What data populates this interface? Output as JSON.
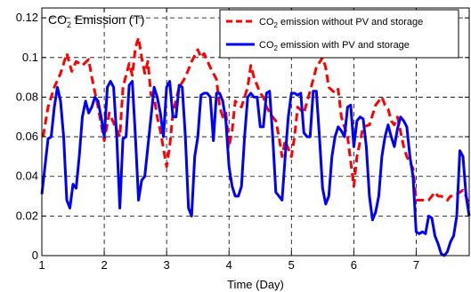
{
  "colors": {
    "series_without": "#ff0000",
    "series_with": "#0000ff",
    "axis": "#000000",
    "background": "#ffffff"
  },
  "chart_data": {
    "type": "line",
    "title_parts": [
      "CO",
      "2",
      " Emission (T)"
    ],
    "xlabel": "Time (Day)",
    "ylabel": "",
    "xlim": [
      1,
      7.85
    ],
    "ylim": [
      0,
      0.125
    ],
    "xticks": [
      1,
      2,
      3,
      4,
      5,
      6,
      7
    ],
    "xtick_labels": [
      "1",
      "2",
      "3",
      "4",
      "5",
      "6",
      "7"
    ],
    "yticks": [
      0,
      0.02,
      0.04,
      0.06,
      0.08,
      0.1,
      0.12
    ],
    "ytick_labels": [
      "0",
      "0.02",
      "0.04",
      "0.06",
      "0.08",
      "0.1",
      "0.12"
    ],
    "grid": true,
    "legend_position": "top-right",
    "series": [
      {
        "name_parts": [
          "CO",
          "2",
          " emission without PV and storage"
        ],
        "line_style": "dashed",
        "points": [
          [
            1.02,
            0.06
          ],
          [
            1.1,
            0.075
          ],
          [
            1.2,
            0.085
          ],
          [
            1.3,
            0.092
          ],
          [
            1.4,
            0.102
          ],
          [
            1.48,
            0.093
          ],
          [
            1.55,
            0.098
          ],
          [
            1.65,
            0.096
          ],
          [
            1.75,
            0.099
          ],
          [
            1.8,
            0.09
          ],
          [
            1.9,
            0.075
          ],
          [
            2.0,
            0.058
          ],
          [
            2.08,
            0.072
          ],
          [
            2.15,
            0.067
          ],
          [
            2.25,
            0.06
          ],
          [
            2.3,
            0.085
          ],
          [
            2.4,
            0.097
          ],
          [
            2.45,
            0.091
          ],
          [
            2.5,
            0.105
          ],
          [
            2.55,
            0.11
          ],
          [
            2.6,
            0.1
          ],
          [
            2.65,
            0.092
          ],
          [
            2.7,
            0.098
          ],
          [
            2.75,
            0.081
          ],
          [
            2.8,
            0.08
          ],
          [
            2.85,
            0.07
          ],
          [
            2.9,
            0.063
          ],
          [
            3.0,
            0.045
          ],
          [
            3.05,
            0.055
          ],
          [
            3.1,
            0.072
          ],
          [
            3.2,
            0.085
          ],
          [
            3.3,
            0.09
          ],
          [
            3.4,
            0.098
          ],
          [
            3.5,
            0.104
          ],
          [
            3.55,
            0.1
          ],
          [
            3.6,
            0.102
          ],
          [
            3.7,
            0.095
          ],
          [
            3.8,
            0.089
          ],
          [
            3.85,
            0.075
          ],
          [
            3.9,
            0.07
          ],
          [
            3.95,
            0.072
          ],
          [
            4.0,
            0.055
          ],
          [
            4.05,
            0.063
          ],
          [
            4.1,
            0.078
          ],
          [
            4.2,
            0.075
          ],
          [
            4.3,
            0.085
          ],
          [
            4.35,
            0.096
          ],
          [
            4.4,
            0.09
          ],
          [
            4.5,
            0.082
          ],
          [
            4.55,
            0.08
          ],
          [
            4.6,
            0.075
          ],
          [
            4.7,
            0.07
          ],
          [
            4.75,
            0.068
          ],
          [
            4.8,
            0.06
          ],
          [
            4.85,
            0.05
          ],
          [
            4.9,
            0.058
          ],
          [
            5.0,
            0.05
          ],
          [
            5.05,
            0.06
          ],
          [
            5.1,
            0.075
          ],
          [
            5.2,
            0.072
          ],
          [
            5.3,
            0.083
          ],
          [
            5.4,
            0.095
          ],
          [
            5.5,
            0.1
          ],
          [
            5.55,
            0.095
          ],
          [
            5.6,
            0.085
          ],
          [
            5.7,
            0.082
          ],
          [
            5.75,
            0.084
          ],
          [
            5.8,
            0.07
          ],
          [
            5.9,
            0.06
          ],
          [
            6.0,
            0.035
          ],
          [
            6.05,
            0.05
          ],
          [
            6.15,
            0.065
          ],
          [
            6.25,
            0.066
          ],
          [
            6.35,
            0.076
          ],
          [
            6.45,
            0.08
          ],
          [
            6.5,
            0.076
          ],
          [
            6.55,
            0.074
          ],
          [
            6.6,
            0.068
          ],
          [
            6.65,
            0.066
          ],
          [
            6.7,
            0.07
          ],
          [
            6.8,
            0.055
          ],
          [
            6.85,
            0.05
          ],
          [
            6.95,
            0.044
          ],
          [
            7.0,
            0.028
          ],
          [
            7.1,
            0.028
          ],
          [
            7.2,
            0.028
          ],
          [
            7.3,
            0.032
          ],
          [
            7.35,
            0.03
          ],
          [
            7.4,
            0.03
          ],
          [
            7.5,
            0.028
          ],
          [
            7.55,
            0.03
          ],
          [
            7.6,
            0.03
          ],
          [
            7.7,
            0.032
          ],
          [
            7.75,
            0.033
          ],
          [
            7.8,
            0.03
          ],
          [
            7.85,
            0.025
          ]
        ]
      },
      {
        "name_parts": [
          "CO",
          "2",
          " emission with PV and storage"
        ],
        "line_style": "solid",
        "points": [
          [
            1.0,
            0.031
          ],
          [
            1.05,
            0.045
          ],
          [
            1.1,
            0.059
          ],
          [
            1.15,
            0.06
          ],
          [
            1.2,
            0.075
          ],
          [
            1.25,
            0.085
          ],
          [
            1.3,
            0.078
          ],
          [
            1.35,
            0.06
          ],
          [
            1.4,
            0.028
          ],
          [
            1.45,
            0.024
          ],
          [
            1.5,
            0.036
          ],
          [
            1.55,
            0.034
          ],
          [
            1.6,
            0.05
          ],
          [
            1.65,
            0.07
          ],
          [
            1.7,
            0.078
          ],
          [
            1.75,
            0.072
          ],
          [
            1.8,
            0.075
          ],
          [
            1.85,
            0.08
          ],
          [
            1.9,
            0.078
          ],
          [
            1.95,
            0.07
          ],
          [
            2.0,
            0.06
          ],
          [
            2.05,
            0.085
          ],
          [
            2.1,
            0.088
          ],
          [
            2.15,
            0.085
          ],
          [
            2.2,
            0.06
          ],
          [
            2.25,
            0.024
          ],
          [
            2.3,
            0.059
          ],
          [
            2.35,
            0.06
          ],
          [
            2.4,
            0.086
          ],
          [
            2.45,
            0.088
          ],
          [
            2.5,
            0.06
          ],
          [
            2.55,
            0.028
          ],
          [
            2.6,
            0.038
          ],
          [
            2.65,
            0.04
          ],
          [
            2.7,
            0.055
          ],
          [
            2.75,
            0.07
          ],
          [
            2.8,
            0.085
          ],
          [
            2.85,
            0.08
          ],
          [
            2.9,
            0.072
          ],
          [
            2.95,
            0.06
          ],
          [
            3.0,
            0.085
          ],
          [
            3.05,
            0.088
          ],
          [
            3.1,
            0.07
          ],
          [
            3.15,
            0.07
          ],
          [
            3.2,
            0.086
          ],
          [
            3.25,
            0.085
          ],
          [
            3.3,
            0.06
          ],
          [
            3.35,
            0.024
          ],
          [
            3.4,
            0.02
          ],
          [
            3.45,
            0.05
          ],
          [
            3.5,
            0.06
          ],
          [
            3.55,
            0.081
          ],
          [
            3.6,
            0.082
          ],
          [
            3.65,
            0.082
          ],
          [
            3.7,
            0.08
          ],
          [
            3.75,
            0.058
          ],
          [
            3.8,
            0.082
          ],
          [
            3.85,
            0.082
          ],
          [
            3.9,
            0.078
          ],
          [
            3.95,
            0.068
          ],
          [
            4.0,
            0.045
          ],
          [
            4.05,
            0.035
          ],
          [
            4.1,
            0.03
          ],
          [
            4.15,
            0.03
          ],
          [
            4.2,
            0.035
          ],
          [
            4.25,
            0.06
          ],
          [
            4.3,
            0.08
          ],
          [
            4.35,
            0.082
          ],
          [
            4.4,
            0.08
          ],
          [
            4.45,
            0.08
          ],
          [
            4.5,
            0.065
          ],
          [
            4.55,
            0.065
          ],
          [
            4.6,
            0.082
          ],
          [
            4.65,
            0.083
          ],
          [
            4.7,
            0.06
          ],
          [
            4.75,
            0.032
          ],
          [
            4.8,
            0.03
          ],
          [
            4.85,
            0.028
          ],
          [
            4.9,
            0.05
          ],
          [
            4.95,
            0.07
          ],
          [
            5.0,
            0.082
          ],
          [
            5.05,
            0.082
          ],
          [
            5.1,
            0.081
          ],
          [
            5.15,
            0.082
          ],
          [
            5.2,
            0.062
          ],
          [
            5.25,
            0.06
          ],
          [
            5.3,
            0.06
          ],
          [
            5.35,
            0.083
          ],
          [
            5.4,
            0.083
          ],
          [
            5.45,
            0.06
          ],
          [
            5.5,
            0.034
          ],
          [
            5.55,
            0.026
          ],
          [
            5.6,
            0.03
          ],
          [
            5.65,
            0.05
          ],
          [
            5.7,
            0.06
          ],
          [
            5.75,
            0.065
          ],
          [
            5.8,
            0.063
          ],
          [
            5.85,
            0.06
          ],
          [
            5.9,
            0.075
          ],
          [
            5.95,
            0.076
          ],
          [
            6.0,
            0.055
          ],
          [
            6.05,
            0.068
          ],
          [
            6.1,
            0.07
          ],
          [
            6.15,
            0.069
          ],
          [
            6.2,
            0.055
          ],
          [
            6.25,
            0.03
          ],
          [
            6.3,
            0.018
          ],
          [
            6.35,
            0.022
          ],
          [
            6.4,
            0.03
          ],
          [
            6.45,
            0.05
          ],
          [
            6.5,
            0.06
          ],
          [
            6.55,
            0.066
          ],
          [
            6.6,
            0.06
          ],
          [
            6.65,
            0.055
          ],
          [
            6.7,
            0.064
          ],
          [
            6.75,
            0.07
          ],
          [
            6.8,
            0.068
          ],
          [
            6.85,
            0.065
          ],
          [
            6.9,
            0.05
          ],
          [
            6.95,
            0.04
          ],
          [
            7.0,
            0.012
          ],
          [
            7.05,
            0.011
          ],
          [
            7.1,
            0.012
          ],
          [
            7.15,
            0.011
          ],
          [
            7.2,
            0.02
          ],
          [
            7.25,
            0.019
          ],
          [
            7.3,
            0.01
          ],
          [
            7.35,
            0.006
          ],
          [
            7.4,
            0.001
          ],
          [
            7.45,
            0.0
          ],
          [
            7.5,
            0.002
          ],
          [
            7.55,
            0.007
          ],
          [
            7.6,
            0.01
          ],
          [
            7.65,
            0.02
          ],
          [
            7.7,
            0.053
          ],
          [
            7.75,
            0.05
          ],
          [
            7.8,
            0.03
          ],
          [
            7.85,
            0.02
          ]
        ]
      }
    ]
  }
}
